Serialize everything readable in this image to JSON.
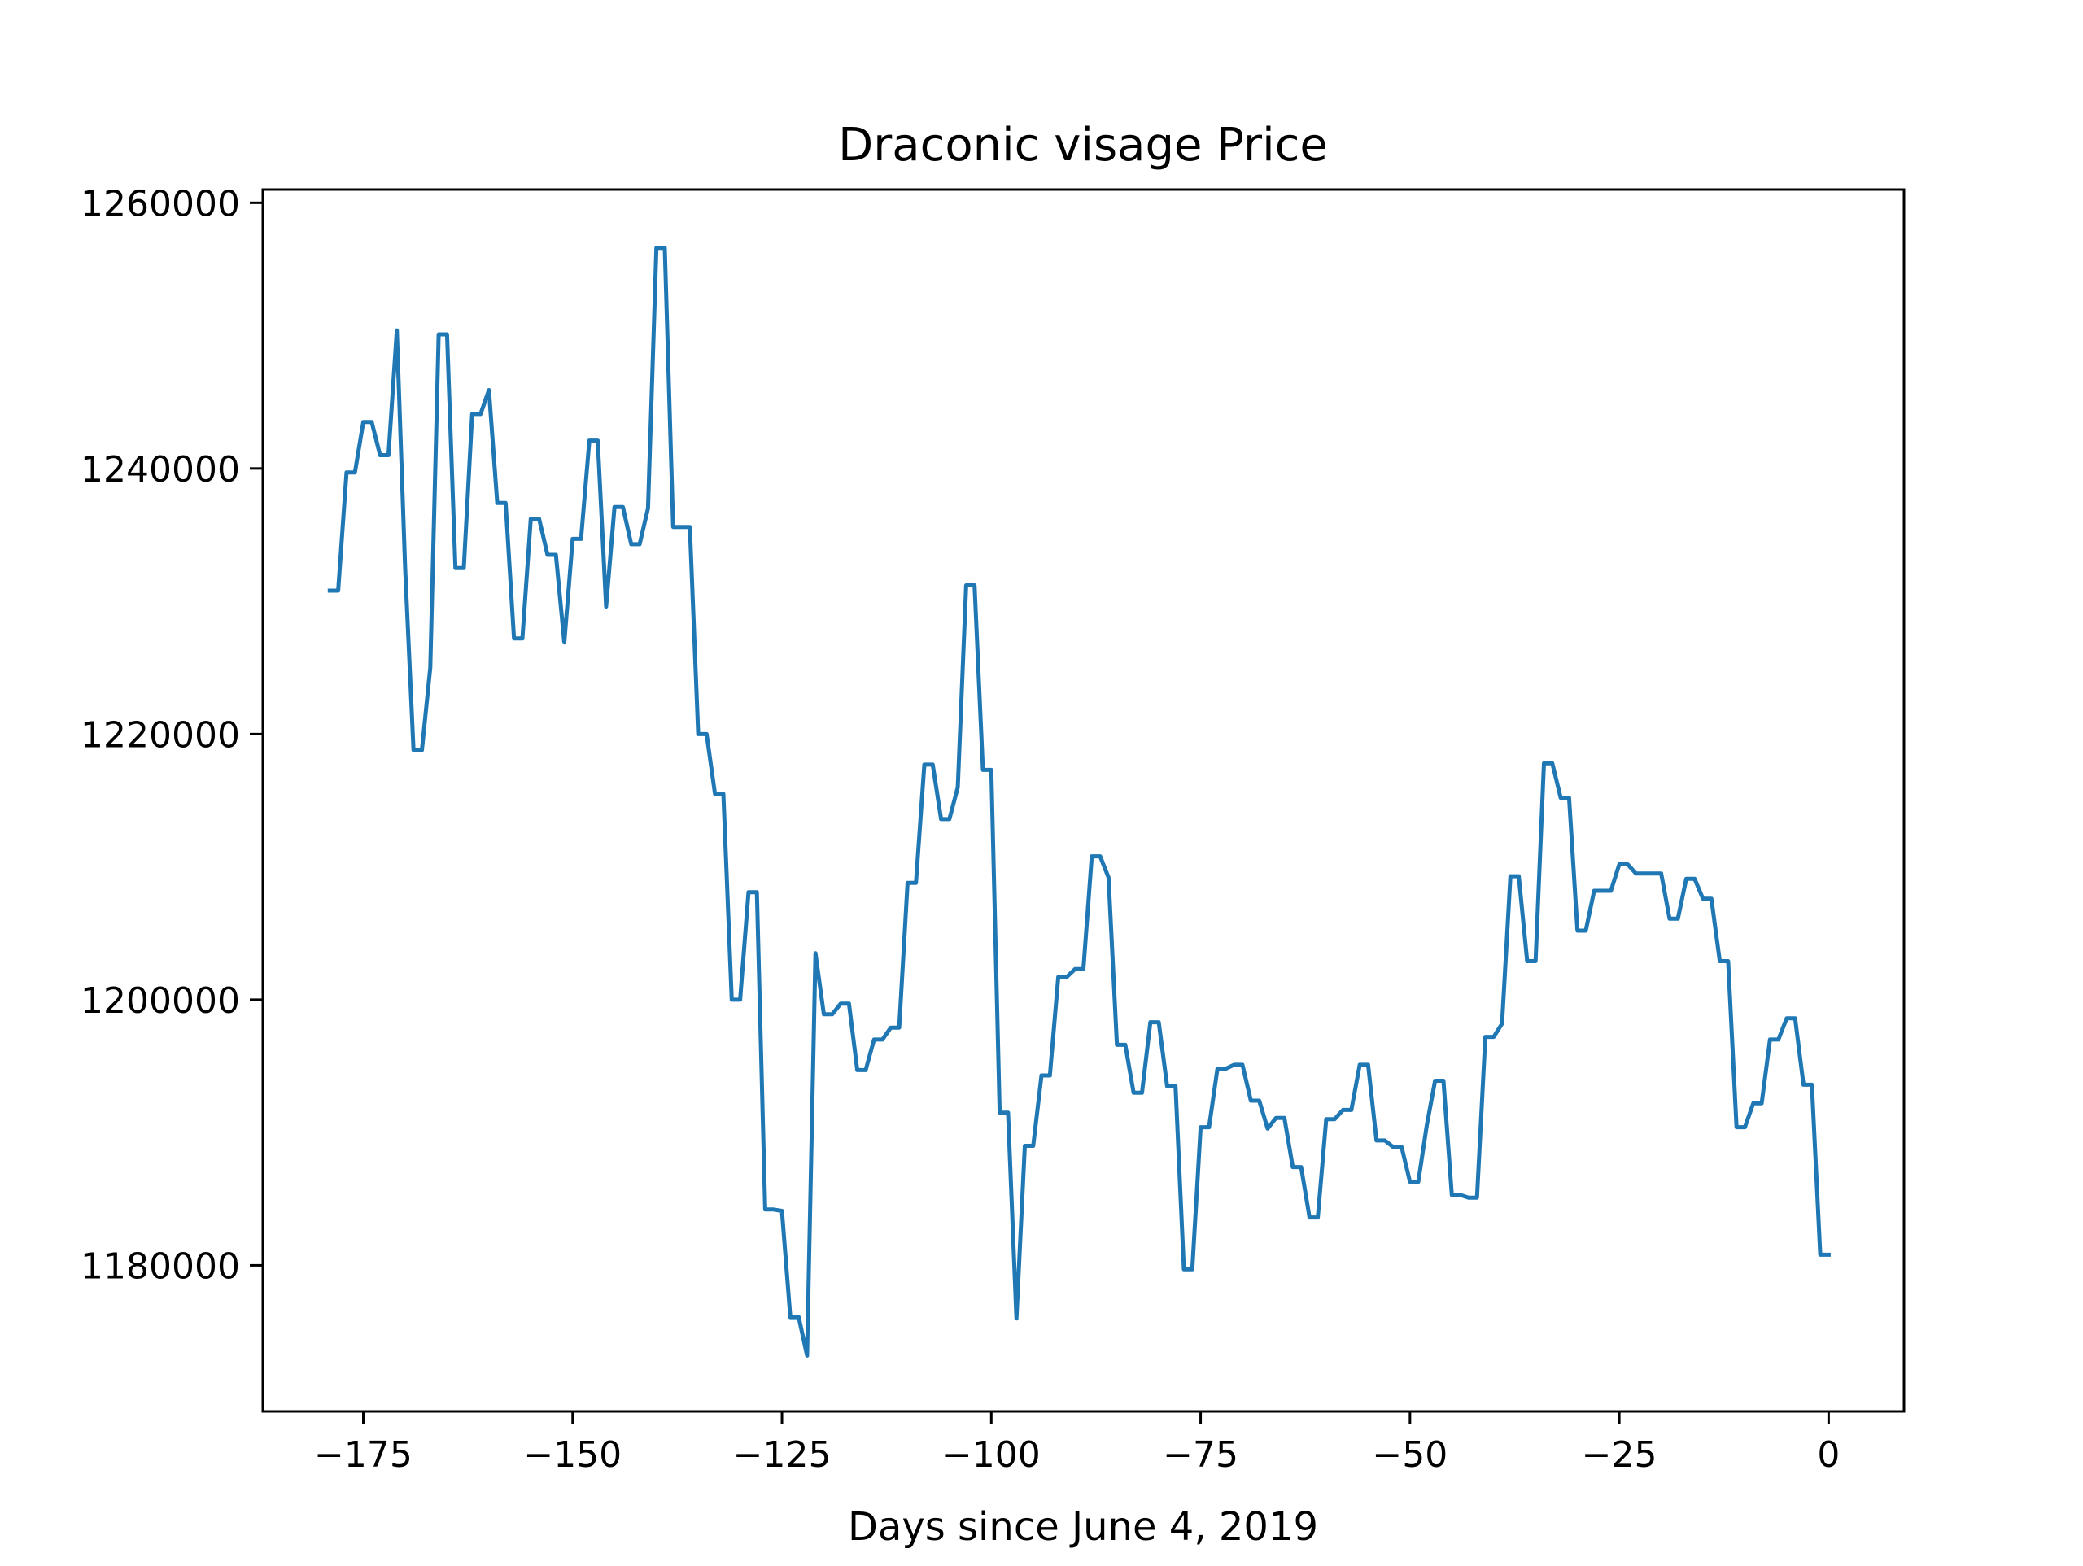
{
  "chart_data": {
    "type": "line",
    "title": "Draconic visage Price",
    "xlabel": "Days since June 4, 2019",
    "ylabel": "",
    "xlim": [
      -187,
      9
    ],
    "ylim": [
      1169000,
      1261000
    ],
    "xticks": [
      -175,
      -150,
      -125,
      -100,
      -75,
      -50,
      -25,
      0
    ],
    "xtick_labels": [
      "−175",
      "−150",
      "−125",
      "−100",
      "−75",
      "−50",
      "−25",
      "0"
    ],
    "yticks": [
      1180000,
      1200000,
      1220000,
      1240000,
      1260000
    ],
    "ytick_labels": [
      "1180000",
      "1200000",
      "1220000",
      "1240000",
      "1260000"
    ],
    "grid": false,
    "line_color": "#1f77b4",
    "series": [
      {
        "x": [
          -179,
          -178,
          -177,
          -176,
          -175,
          -174,
          -173,
          -172,
          -171,
          -170,
          -169,
          -168,
          -167,
          -166,
          -165,
          -164,
          -163,
          -162,
          -161,
          -160,
          -159,
          -158,
          -157,
          -156,
          -155,
          -154,
          -153,
          -152,
          -151,
          -150,
          -149,
          -148,
          -147,
          -146,
          -145,
          -144,
          -143,
          -142,
          -141,
          -140,
          -139,
          -138,
          -137,
          -136,
          -135,
          -134,
          -133,
          -132,
          -131,
          -130,
          -129,
          -128,
          -127,
          -126,
          -125,
          -124,
          -123,
          -122,
          -121,
          -120,
          -119,
          -118,
          -117,
          -116,
          -115,
          -114,
          -113,
          -112,
          -111,
          -110,
          -109,
          -108,
          -107,
          -106,
          -105,
          -104,
          -103,
          -102,
          -101,
          -100,
          -99,
          -98,
          -97,
          -96,
          -95,
          -94,
          -93,
          -92,
          -91,
          -90,
          -89,
          -88,
          -87,
          -86,
          -85,
          -84,
          -83,
          -82,
          -81,
          -80,
          -79,
          -78,
          -77,
          -76,
          -75,
          -74,
          -73,
          -72,
          -71,
          -70,
          -69,
          -68,
          -67,
          -66,
          -65,
          -64,
          -63,
          -62,
          -61,
          -60,
          -59,
          -58,
          -57,
          -56,
          -55,
          -54,
          -53,
          -52,
          -51,
          -50,
          -49,
          -48,
          -47,
          -46,
          -45,
          -44,
          -43,
          -42,
          -41,
          -40,
          -39,
          -38,
          -37,
          -36,
          -35,
          -34,
          -33,
          -32,
          -31,
          -30,
          -29,
          -28,
          -27,
          -26,
          -25,
          -24,
          -23,
          -22,
          -21,
          -20,
          -19,
          -18,
          -17,
          -16,
          -15,
          -14,
          -13,
          -12,
          -11,
          -10,
          -9,
          -8,
          -7,
          -6,
          -5,
          -4,
          -3,
          -2,
          -1,
          0
        ],
        "y": [
          1230800,
          1230800,
          1239700,
          1239700,
          1243500,
          1243500,
          1241000,
          1241000,
          1250400,
          1232500,
          1218800,
          1218800,
          1225000,
          1250100,
          1250100,
          1232500,
          1232500,
          1244100,
          1244100,
          1245900,
          1237400,
          1237400,
          1227200,
          1227200,
          1236200,
          1236200,
          1233500,
          1233500,
          1226900,
          1234700,
          1234700,
          1242100,
          1242100,
          1229600,
          1237100,
          1237100,
          1234300,
          1234300,
          1237000,
          1256600,
          1256600,
          1235600,
          1235600,
          1235600,
          1220000,
          1220000,
          1215500,
          1215500,
          1200000,
          1200000,
          1208100,
          1208100,
          1184200,
          1184200,
          1184100,
          1176100,
          1176100,
          1173200,
          1203500,
          1198900,
          1198900,
          1199700,
          1199700,
          1194700,
          1194700,
          1197000,
          1197000,
          1197900,
          1197900,
          1208800,
          1208800,
          1217700,
          1217700,
          1213600,
          1213600,
          1216000,
          1231200,
          1231200,
          1217300,
          1217300,
          1191500,
          1191500,
          1176000,
          1189000,
          1189000,
          1194300,
          1194300,
          1201700,
          1201700,
          1202300,
          1202300,
          1210800,
          1210800,
          1209200,
          1196600,
          1196600,
          1193000,
          1193000,
          1198300,
          1198300,
          1193500,
          1193500,
          1179700,
          1179700,
          1190400,
          1190400,
          1194800,
          1194800,
          1195100,
          1195100,
          1192400,
          1192400,
          1190300,
          1191100,
          1191100,
          1187400,
          1187400,
          1183600,
          1183600,
          1191000,
          1191000,
          1191700,
          1191700,
          1195100,
          1195100,
          1189400,
          1189400,
          1188900,
          1188900,
          1186300,
          1186300,
          1190500,
          1193900,
          1193900,
          1185300,
          1185300,
          1185100,
          1185100,
          1197200,
          1197200,
          1198200,
          1209300,
          1209300,
          1202900,
          1202900,
          1217800,
          1217800,
          1215200,
          1215200,
          1205200,
          1205200,
          1208200,
          1208200,
          1208200,
          1210200,
          1210200,
          1209500,
          1209500,
          1209500,
          1209500,
          1206100,
          1206100,
          1209100,
          1209100,
          1207600,
          1207600,
          1202900,
          1202900,
          1190400,
          1190400,
          1192200,
          1192200,
          1197000,
          1197000,
          1198600,
          1198600,
          1193600,
          1193600,
          1180800,
          1180800
        ]
      }
    ]
  }
}
